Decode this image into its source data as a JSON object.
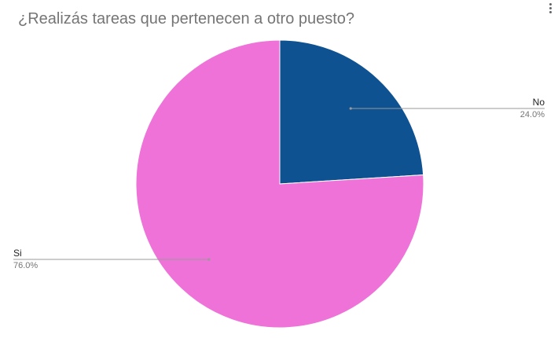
{
  "chart_data": {
    "type": "pie",
    "title": "¿Realizás tareas que pertenecen a otro puesto?",
    "slices": [
      {
        "label": "No",
        "value": 24.0,
        "percent_label": "24.0%",
        "color": "#0e5292"
      },
      {
        "label": "Si",
        "value": 76.0,
        "percent_label": "76.0%",
        "color": "#ee72d7"
      }
    ],
    "start_angle_deg": 0,
    "direction": "clockwise",
    "legend": "labeled-callouts"
  },
  "colors": {
    "leader_line": "#999999",
    "label_text": "#222222",
    "percent_text": "#757575"
  },
  "icons": {
    "menu": "more-vertical-icon"
  }
}
